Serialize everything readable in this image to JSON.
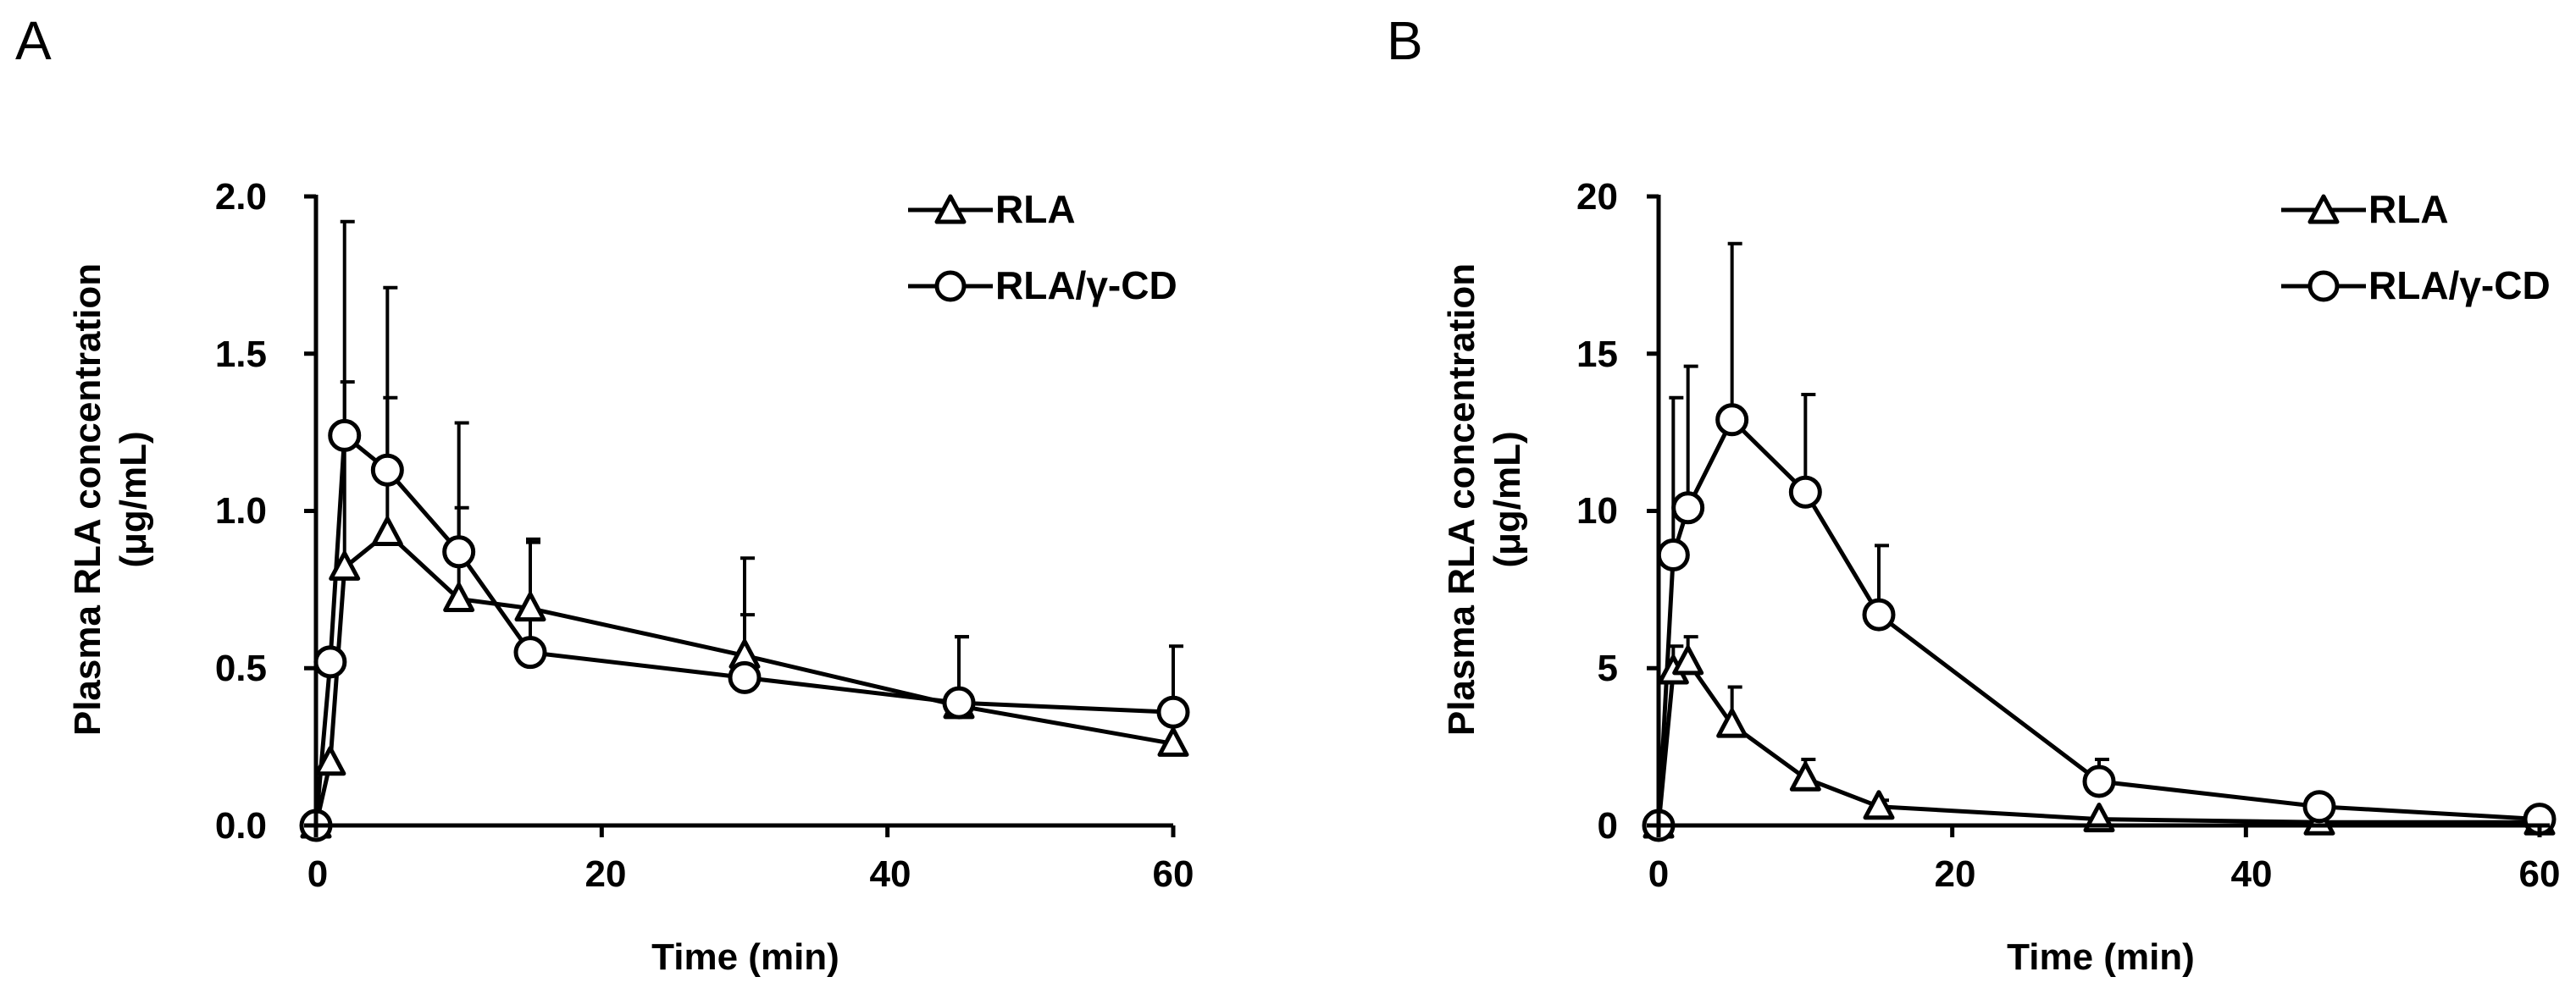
{
  "panels": [
    {
      "label": "A",
      "xlabel": "Time (min)",
      "ylabel_line1": "Plasma RLA concentration",
      "ylabel_line2": "(μg/mL)",
      "xticks": [
        "0",
        "20",
        "40",
        "60"
      ],
      "yticks": [
        "0.0",
        "0.5",
        "1.0",
        "1.5",
        "2.0"
      ],
      "legend": [
        "RLA",
        "RLA/γ-CD"
      ]
    },
    {
      "label": "B",
      "xlabel": "Time (min)",
      "ylabel_line1": "Plasma RLA concentration",
      "ylabel_line2": "(μg/mL)",
      "xticks": [
        "0",
        "20",
        "40",
        "60"
      ],
      "yticks": [
        "0",
        "5",
        "10",
        "15",
        "20"
      ],
      "legend": [
        "RLA",
        "RLA/γ-CD"
      ]
    }
  ],
  "chart_data": [
    {
      "type": "line",
      "panel": "A",
      "title": "",
      "xlabel": "Time (min)",
      "ylabel": "Plasma RLA concentration (μg/mL)",
      "xlim": [
        0,
        60
      ],
      "ylim": [
        0,
        2.0
      ],
      "xticks": [
        0,
        20,
        40,
        60
      ],
      "yticks": [
        0.0,
        0.5,
        1.0,
        1.5,
        2.0
      ],
      "legend_position": "top-right",
      "series": [
        {
          "name": "RLA",
          "marker": "triangle",
          "x": [
            0,
            1,
            2,
            5,
            10,
            15,
            30,
            45,
            60
          ],
          "y": [
            0.0,
            0.2,
            0.82,
            0.93,
            0.72,
            0.69,
            0.54,
            0.38,
            0.26
          ],
          "error_upper": [
            0,
            0,
            0.59,
            0.43,
            0.29,
            0.21,
            0.13,
            0.22,
            0
          ]
        },
        {
          "name": "RLA/γ-CD",
          "marker": "circle",
          "x": [
            0,
            1,
            2,
            5,
            10,
            15,
            30,
            45,
            60
          ],
          "y": [
            0.0,
            0.52,
            1.24,
            1.13,
            0.87,
            0.55,
            0.47,
            0.39,
            0.36
          ],
          "error_upper": [
            0,
            0,
            0.68,
            0.58,
            0.41,
            0.36,
            0.38,
            0.21,
            0.21
          ]
        }
      ]
    },
    {
      "type": "line",
      "panel": "B",
      "title": "",
      "xlabel": "Time (min)",
      "ylabel": "Plasma RLA concentration (μg/mL)",
      "xlim": [
        0,
        60
      ],
      "ylim": [
        0,
        20
      ],
      "xticks": [
        0,
        20,
        40,
        60
      ],
      "yticks": [
        0,
        5,
        10,
        15,
        20
      ],
      "legend_position": "top-right",
      "series": [
        {
          "name": "RLA",
          "marker": "triangle",
          "x": [
            0,
            1,
            2,
            5,
            10,
            15,
            30,
            45,
            60
          ],
          "y": [
            0.0,
            4.9,
            5.2,
            3.2,
            1.5,
            0.6,
            0.2,
            0.1,
            0.1
          ],
          "error_upper": [
            0,
            0.8,
            0.8,
            1.2,
            0.6,
            0.2,
            0,
            0,
            0
          ]
        },
        {
          "name": "RLA/γ-CD",
          "marker": "circle",
          "x": [
            0,
            1,
            2,
            5,
            10,
            15,
            30,
            45,
            60
          ],
          "y": [
            0.0,
            8.6,
            10.1,
            12.9,
            10.6,
            6.7,
            1.4,
            0.6,
            0.2
          ],
          "error_upper": [
            0,
            5.0,
            4.5,
            5.6,
            3.1,
            2.2,
            0.7,
            0,
            0
          ]
        }
      ]
    }
  ]
}
